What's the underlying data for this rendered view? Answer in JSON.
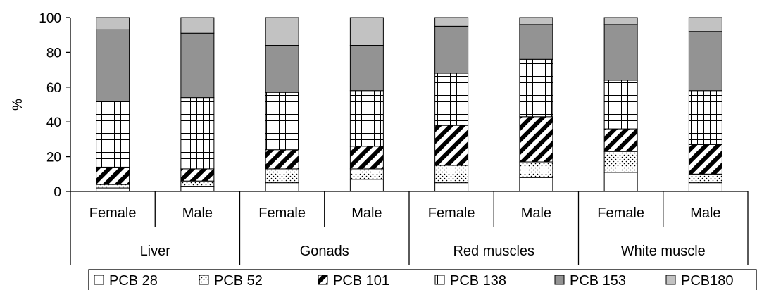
{
  "chart_data": {
    "type": "bar",
    "stacked": true,
    "percent": true,
    "ylabel": "%",
    "ylim": [
      0,
      100
    ],
    "yticks": [
      0,
      20,
      40,
      60,
      80,
      100
    ],
    "groups": [
      {
        "label": "Liver",
        "categories": [
          "Female",
          "Male"
        ]
      },
      {
        "label": "Gonads",
        "categories": [
          "Female",
          "Male"
        ]
      },
      {
        "label": "Red muscles",
        "categories": [
          "Female",
          "Male"
        ]
      },
      {
        "label": "White muscle",
        "categories": [
          "Female",
          "Male"
        ]
      }
    ],
    "series": [
      {
        "name": "PCB 28",
        "pattern": "white",
        "values": [
          2,
          3,
          5,
          7,
          5,
          8,
          11,
          5
        ]
      },
      {
        "name": "PCB 52",
        "pattern": "dots",
        "values": [
          2,
          3,
          8,
          6,
          10,
          9,
          12,
          5
        ]
      },
      {
        "name": "PCB 101",
        "pattern": "diagonal",
        "values": [
          10,
          7,
          11,
          13,
          23,
          26,
          13,
          17
        ]
      },
      {
        "name": "PCB 138",
        "pattern": "grid",
        "values": [
          38,
          41,
          33,
          32,
          30,
          33,
          28,
          31
        ]
      },
      {
        "name": "PCB 153",
        "pattern": "dark",
        "values": [
          41,
          37,
          27,
          26,
          27,
          20,
          32,
          34
        ]
      },
      {
        "name": "PCB180",
        "pattern": "light",
        "values": [
          7,
          9,
          16,
          16,
          5,
          4,
          4,
          8
        ]
      }
    ],
    "legend_position": "bottom",
    "colors": {
      "dark": "#939393",
      "light": "#c2c2c2",
      "stroke": "#000000"
    }
  }
}
